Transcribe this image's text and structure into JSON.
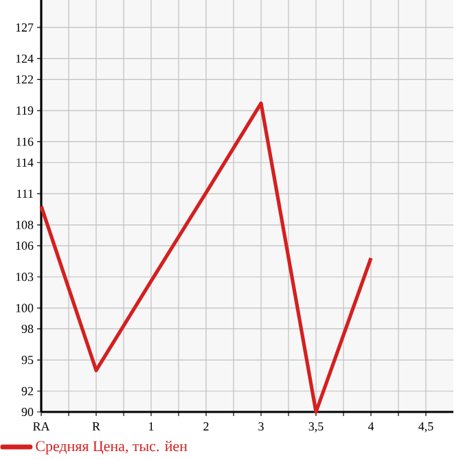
{
  "chart_data": {
    "type": "line",
    "categories": [
      "RA",
      "R",
      "1",
      "2",
      "3",
      "3,5",
      "4",
      "4,5"
    ],
    "series": [
      {
        "name": "Средняя Цена, тыс. йен",
        "color": "#d42020",
        "values": [
          109.8,
          94.0,
          102.6,
          111.1,
          119.7,
          90.0,
          104.8,
          null
        ]
      }
    ],
    "ylim": [
      90,
      129.64
    ],
    "yticks": [
      90,
      92,
      95,
      98,
      100,
      103,
      106,
      108,
      111,
      114,
      116,
      119,
      122,
      124,
      127
    ],
    "grid": true,
    "legend": "bottom left",
    "marker": "none",
    "line_style": "solid"
  }
}
